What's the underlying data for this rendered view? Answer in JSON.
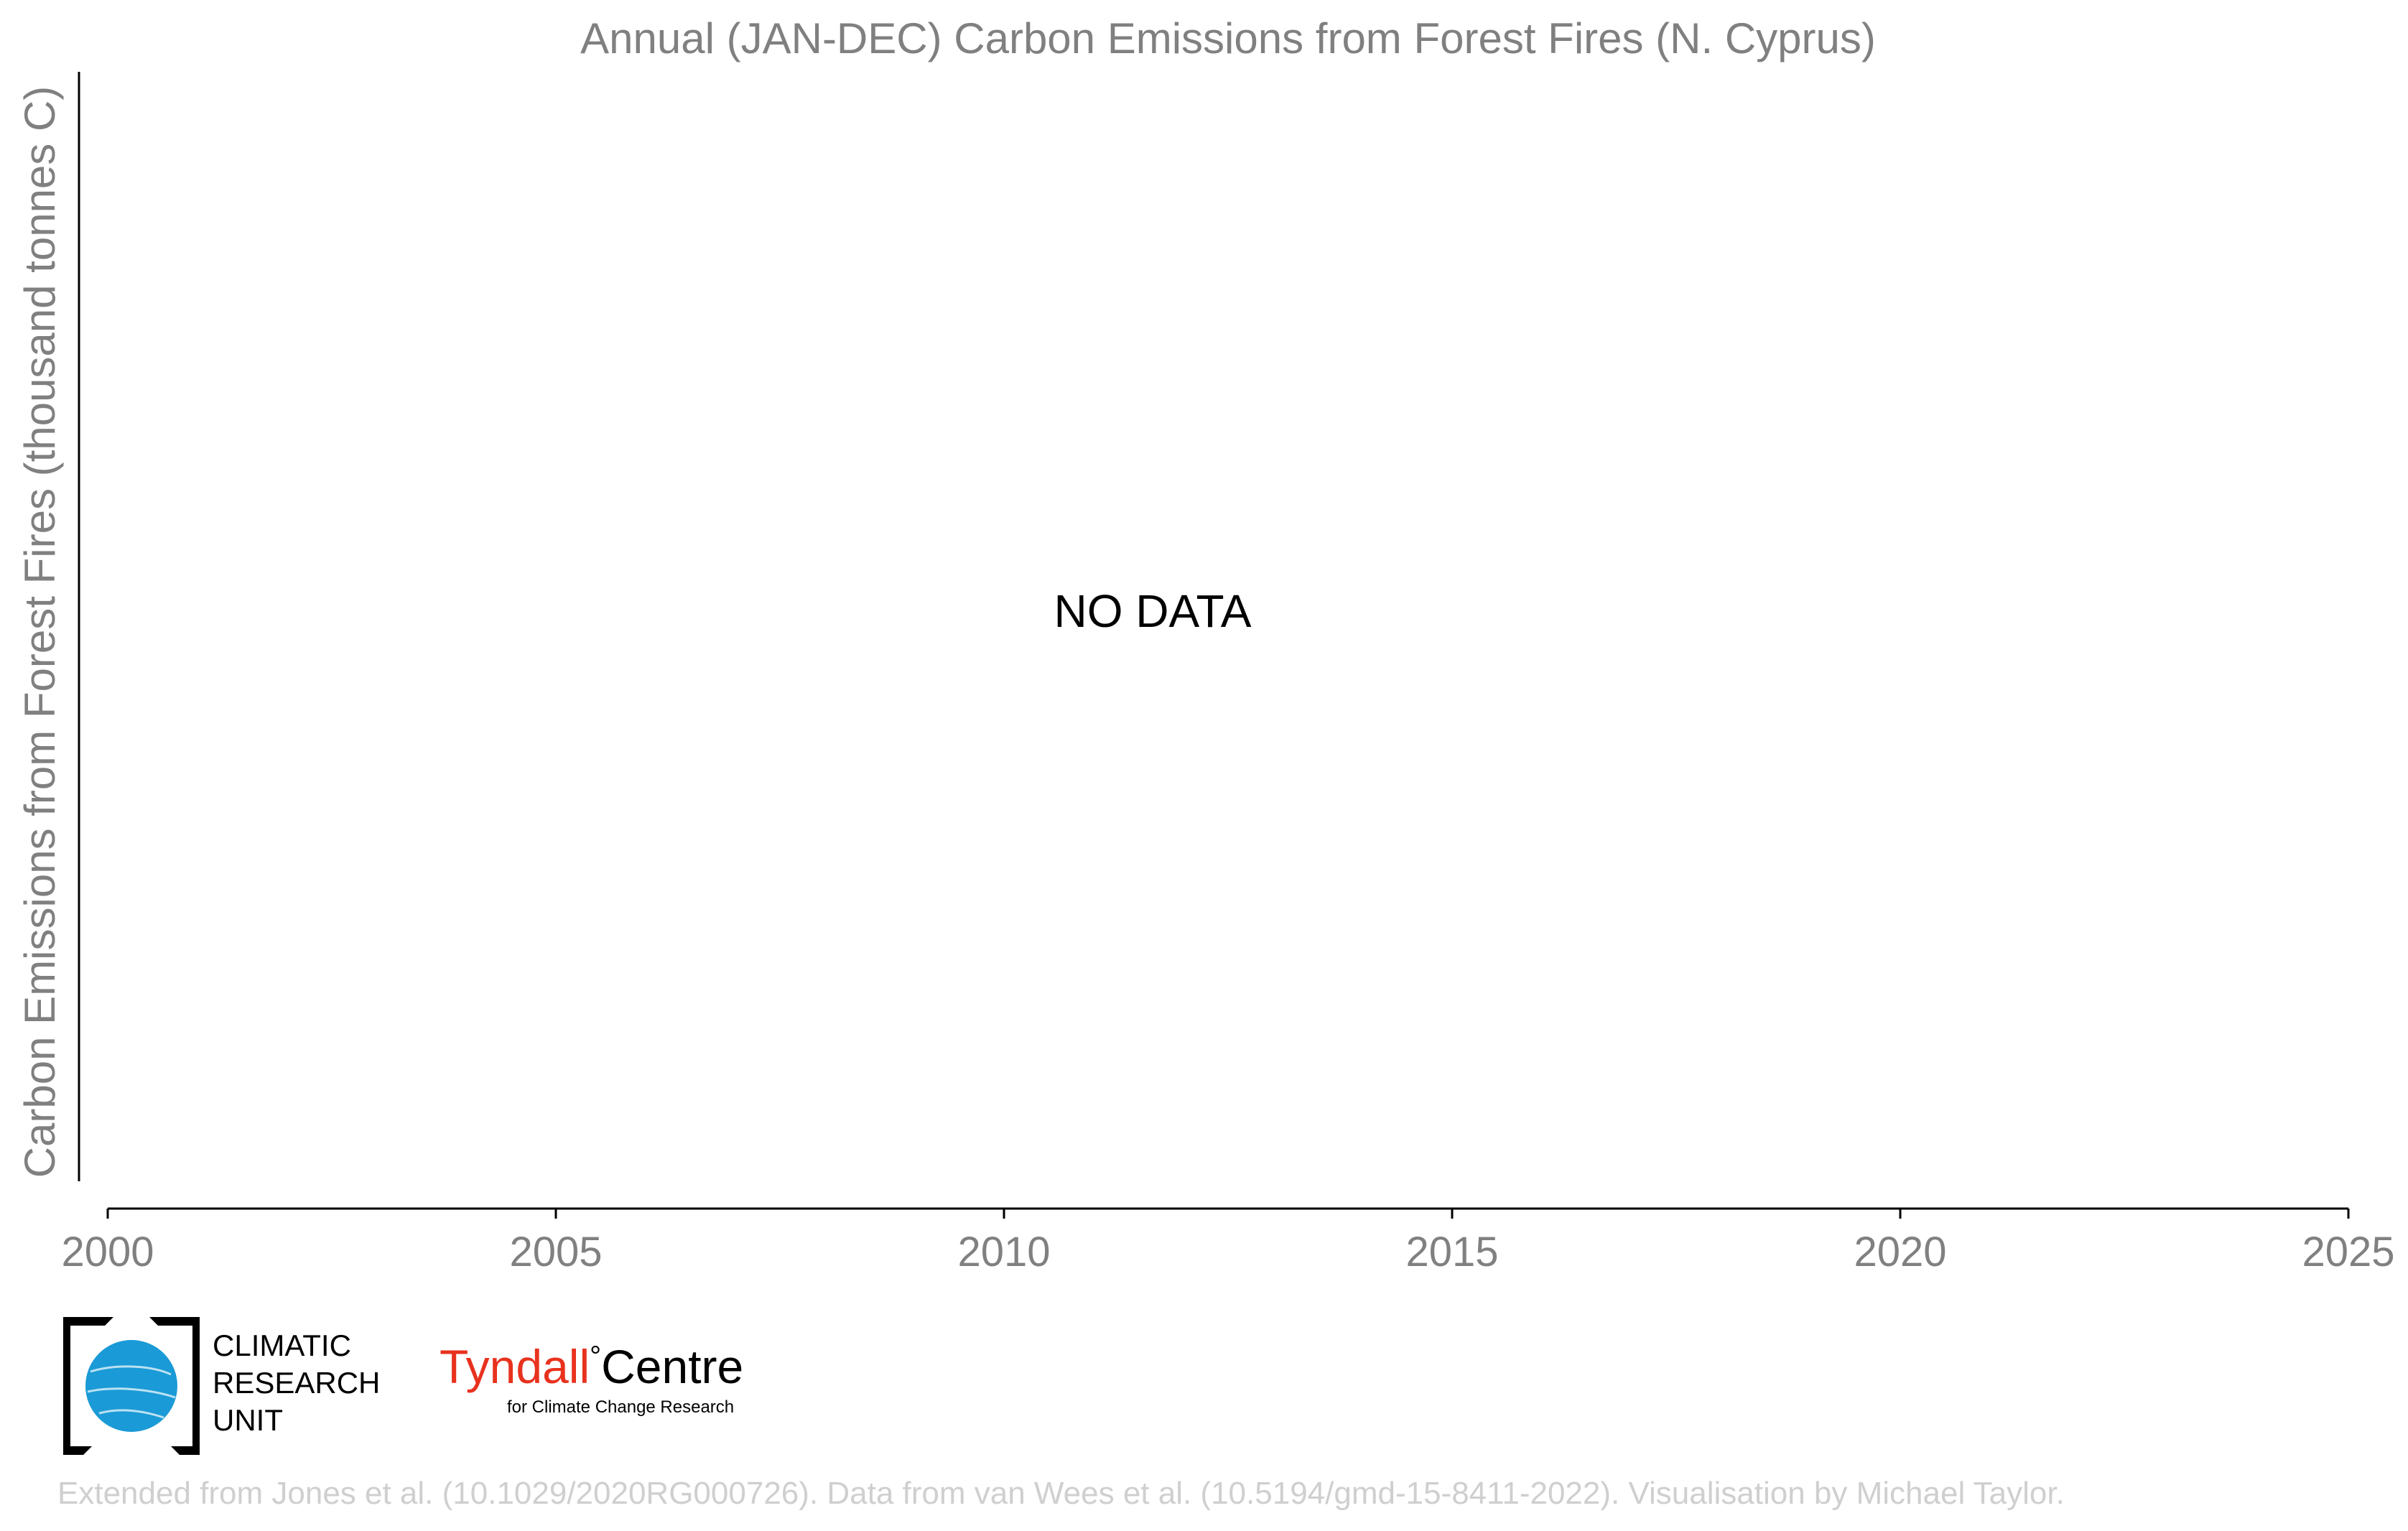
{
  "chart_data": {
    "type": "line",
    "title": "Annual (JAN-DEC) Carbon Emissions from Forest Fires (N. Cyprus)",
    "xlabel": "",
    "ylabel": "Carbon Emissions from Forest Fires (thousand tonnes C)",
    "xlim": [
      2000,
      2025
    ],
    "x_ticks": [
      "2000",
      "2005",
      "2010",
      "2015",
      "2020",
      "2025"
    ],
    "series": [],
    "annotation": "NO DATA",
    "grid": false
  },
  "logos": {
    "cru_lines": [
      "CLIMATIC",
      "RESEARCH",
      "UNIT"
    ],
    "tyndall_main": "Tyndall",
    "tyndall_degree": "°",
    "tyndall_centre": "Centre",
    "tyndall_sub": "for Climate Change Research"
  },
  "footer": {
    "credit": "Extended from Jones et al. (10.1029/2020RG000726). Data from van Wees et al. (10.5194/gmd-15-8411-2022). Visualisation by Michael Taylor."
  },
  "colors": {
    "text_gray": "#808080",
    "axis": "#000000",
    "footer_gray": "#cfcfcf",
    "tyndall_red": "#e8321e",
    "cru_globe": "#1a9ad6"
  }
}
